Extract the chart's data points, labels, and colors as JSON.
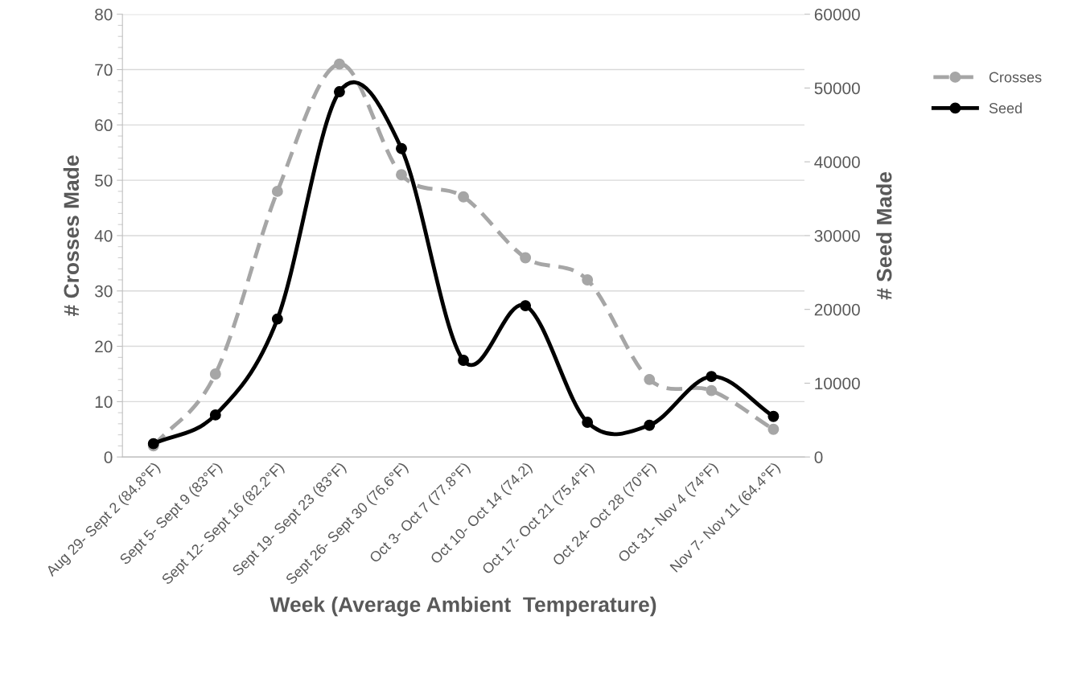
{
  "chart_data": {
    "type": "line",
    "xlabel": "Week (Average Ambient  Temperature)",
    "ylabel": "# Crosses Made",
    "y2label": "# Seed Made",
    "categories": [
      "Aug 29- Sept 2 (84.8°F)",
      "Sept 5- Sept 9 (83°F)",
      "Sept 12- Sept 16 (82.2°F)",
      "Sept 19- Sept 23 (83°F)",
      "Sept 26- Sept 30 (76.6°F)",
      "Oct 3- Oct 7 (77.8°F)",
      "Oct 10- Oct 14 (74.2)",
      "Oct 17- Oct 21 (75.4°F)",
      "Oct 24- Oct 28 (70°F)",
      "Oct 31- Nov 4 (74°F)",
      "Nov 7- Nov 11 (64.4°F)"
    ],
    "series": [
      {
        "name": "Crosses",
        "color": "#a6a6a6",
        "line_style": "dashed",
        "marker": "circle",
        "values": [
          2,
          15,
          48,
          71,
          51,
          47,
          36,
          32,
          14,
          12,
          5
        ]
      },
      {
        "name": "Seed",
        "color": "#000000",
        "line_style": "solid",
        "marker": "circle",
        "axis": "y2",
        "values": [
          1800,
          5700,
          18700,
          49500,
          41800,
          13100,
          20500,
          4700,
          4300,
          10900,
          5500
        ]
      }
    ],
    "ylim": [
      0,
      80
    ],
    "yticks": [
      0,
      10,
      20,
      30,
      40,
      50,
      60,
      70,
      80
    ],
    "y2lim": [
      0,
      60000
    ],
    "y2ticks": [
      0,
      10000,
      20000,
      30000,
      40000,
      50000,
      60000
    ],
    "grid": "y",
    "legend": "right"
  }
}
